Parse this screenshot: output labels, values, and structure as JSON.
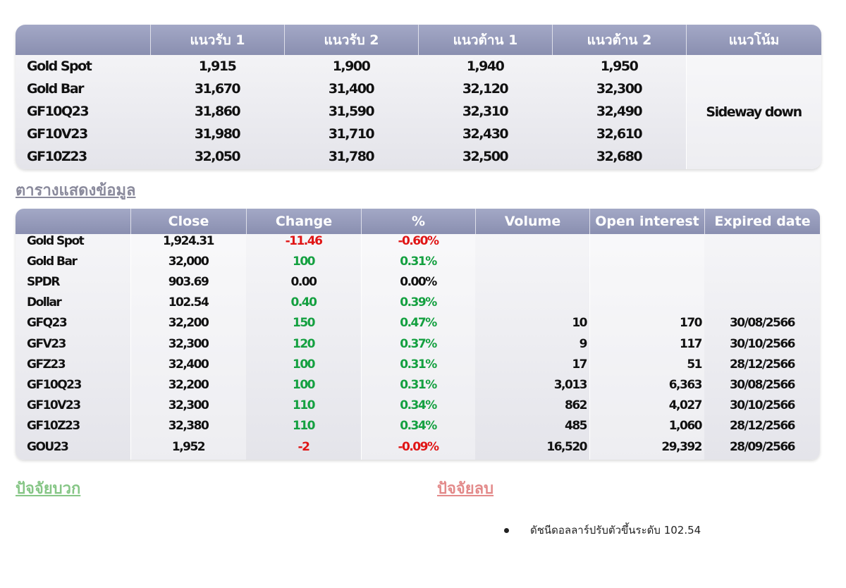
{
  "support_table": {
    "headers": [
      "แนวรับ 1",
      "แนวรับ 2",
      "แนวต้าน 1",
      "แนวต้าน 2",
      "แนวโน้ม"
    ],
    "rows": [
      [
        "Gold Spot",
        "1,915",
        "1,900",
        "1,940",
        "1,950"
      ],
      [
        "Gold Bar",
        "31,670",
        "31,400",
        "32,120",
        "32,300"
      ],
      [
        "GF10Q23",
        "31,860",
        "31,590",
        "32,310",
        "32,490"
      ],
      [
        "GF10V23",
        "31,980",
        "31,710",
        "32,430",
        "32,610"
      ],
      [
        "GF10Z23",
        "32,050",
        "31,780",
        "32,500",
        "32,680"
      ]
    ],
    "trend": "Sideway down"
  },
  "section_title": "ตารางแสดงข้อมูล",
  "price_table": {
    "headers": [
      "Close",
      "Change",
      "%",
      "Volume",
      "Open interest",
      "Expired date"
    ],
    "rows": [
      [
        "Gold Spot",
        "1,924.31",
        "-11.46",
        "-0.60%"
      ],
      [
        "Gold Bar",
        "32,000",
        "100",
        "0.31%"
      ],
      [
        "SPDR",
        "903.69",
        "0.00",
        "0.00%"
      ],
      [
        "Dollar",
        "102.54",
        "0.40",
        "0.39%"
      ],
      [
        "GFQ23",
        "32,200",
        "150",
        "0.47%",
        "10",
        "170",
        "30/08/2566"
      ],
      [
        "GFV23",
        "32,300",
        "120",
        "0.37%",
        "9",
        "117",
        "30/10/2566"
      ],
      [
        "GFZ23",
        "32,400",
        "100",
        "0.31%",
        "17",
        "51",
        "28/12/2566"
      ],
      [
        "GF10Q23",
        "32,200",
        "100",
        "0.31%",
        "3,013",
        "6,363",
        "30/08/2566"
      ],
      [
        "GF10V23",
        "32,300",
        "110",
        "0.34%",
        "862",
        "4,027",
        "30/10/2566"
      ],
      [
        "GF10Z23",
        "32,380",
        "110",
        "0.34%",
        "485",
        "1,060",
        "28/12/2566"
      ],
      [
        "GOU23",
        "1,952",
        "-2",
        "-0.09%",
        "16,520",
        "29,392",
        "28/09/2566"
      ]
    ]
  },
  "positive_factors": {
    "title": "ปัจจัยบวก"
  },
  "negative_factors": {
    "title": "ปัจจัยลบ",
    "items": [
      "ดัชนีดอลลาร์ปรับตัวขึ้นระดับ 102.54"
    ]
  }
}
